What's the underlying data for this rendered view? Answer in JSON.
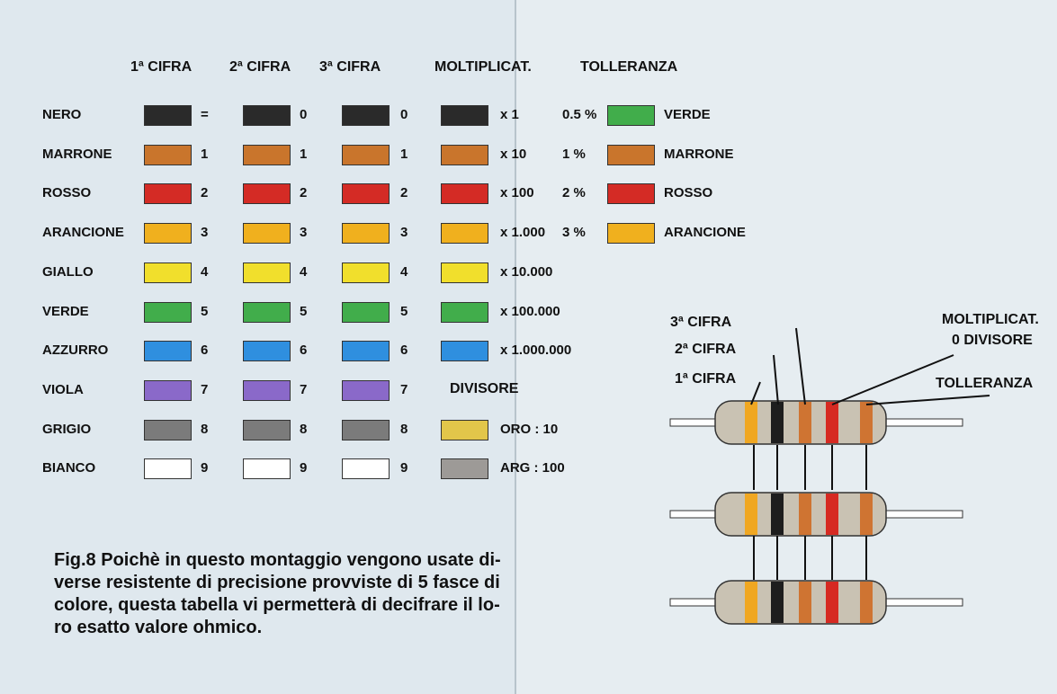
{
  "table": {
    "headers": [
      "1ª CIFRA",
      "2ª CIFRA",
      "3ª CIFRA",
      "MOLTIPLICAT.",
      "TOLLERANZA"
    ],
    "rows": [
      {
        "name": "NERO",
        "d1": "=",
        "d2": "0",
        "d3": "0",
        "color": "#2a2a2a"
      },
      {
        "name": "MARRONE",
        "d1": "1",
        "d2": "1",
        "d3": "1",
        "color": "#c9752c"
      },
      {
        "name": "ROSSO",
        "d1": "2",
        "d2": "2",
        "d3": "2",
        "color": "#d42b25"
      },
      {
        "name": "ARANCIONE",
        "d1": "3",
        "d2": "3",
        "d3": "3",
        "color": "#f0b01e"
      },
      {
        "name": "GIALLO",
        "d1": "4",
        "d2": "4",
        "d3": "4",
        "color": "#f1df2c"
      },
      {
        "name": "VERDE",
        "d1": "5",
        "d2": "5",
        "d3": "5",
        "color": "#41ad4b"
      },
      {
        "name": "AZZURRO",
        "d1": "6",
        "d2": "6",
        "d3": "6",
        "color": "#2f8fdf"
      },
      {
        "name": "VIOLA",
        "d1": "7",
        "d2": "7",
        "d3": "7",
        "color": "#8a69c9"
      },
      {
        "name": "GRIGIO",
        "d1": "8",
        "d2": "8",
        "d3": "8",
        "color": "#7b7b7b"
      },
      {
        "name": "BIANCO",
        "d1": "9",
        "d2": "9",
        "d3": "9",
        "color": "#ffffff"
      }
    ],
    "multipliers": [
      "x 1",
      "x 10",
      "x 100",
      "x 1.000",
      "x 10.000",
      "x 100.000",
      "x 1.000.000"
    ],
    "tolerances": [
      {
        "percent": "0.5 %",
        "name": "VERDE",
        "color": "#41ad4b"
      },
      {
        "percent": "1 %",
        "name": "MARRONE",
        "color": "#c9752c"
      },
      {
        "percent": "2 %",
        "name": "ROSSO",
        "color": "#d42b25"
      },
      {
        "percent": "3 %",
        "name": "ARANCIONE",
        "color": "#f0b01e"
      }
    ],
    "divisor_title": "DIVISORE",
    "divisors": [
      {
        "label": "ORO : 10",
        "color": "#e2c64a"
      },
      {
        "label": "ARG : 100",
        "color": "#9d9a97"
      }
    ]
  },
  "caption": [
    "Fig.8 Poichè in questo montaggio vengono usate di-",
    "verse resistente di precisione provviste di 5 fasce di",
    "colore, questa tabella vi permetterà di decifrare il lo-",
    "ro esatto valore ohmico."
  ],
  "diagram": {
    "labels": {
      "third": "3ª CIFRA",
      "second": "2ª CIFRA",
      "first": "1ª CIFRA",
      "mult1": "MOLTIPLICAT.",
      "mult2": "0 DIVISORE",
      "tolerance": "TOLLERANZA"
    }
  }
}
